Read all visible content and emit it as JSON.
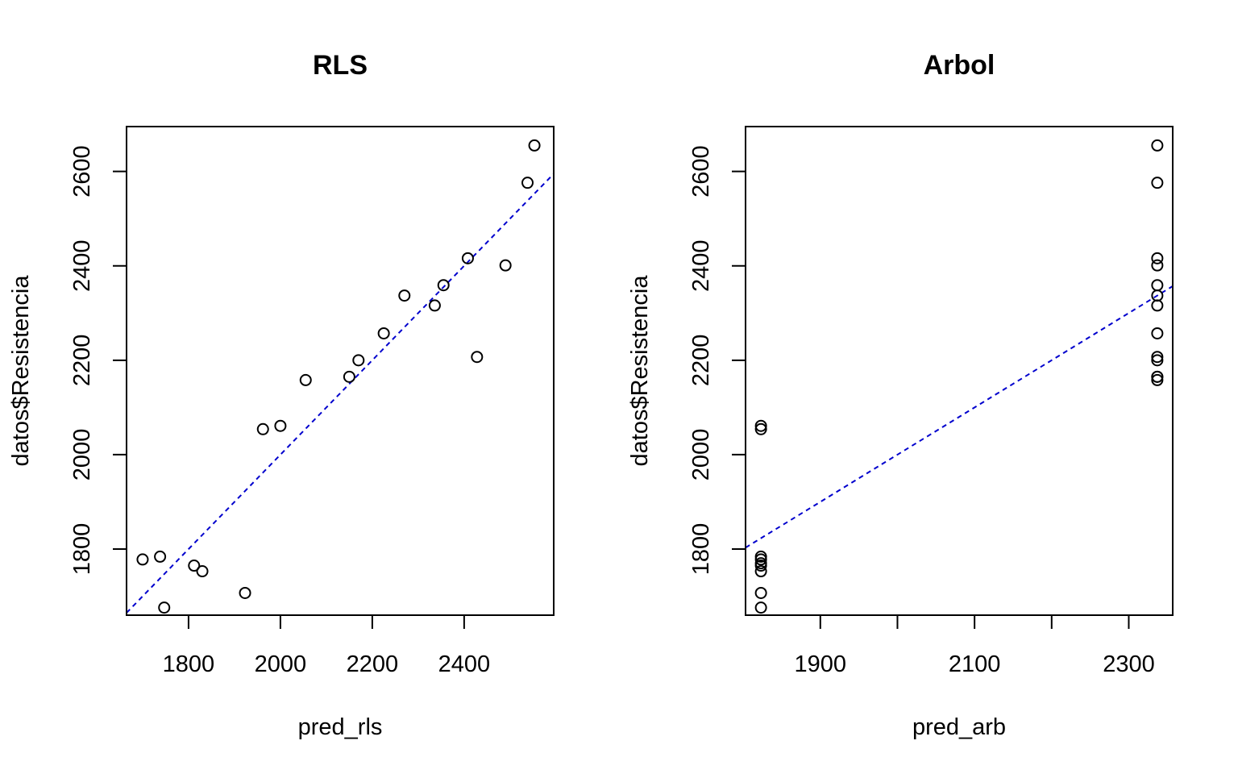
{
  "chart_data": [
    {
      "type": "scatter",
      "title": "RLS",
      "xlabel": "pred_rls",
      "ylabel": "datos$Resistencia",
      "xlim": [
        1665,
        2595
      ],
      "ylim": [
        1660,
        2695
      ],
      "x_ticks": [
        1800,
        2000,
        2200,
        2400
      ],
      "y_ticks": [
        1800,
        2000,
        2200,
        2400,
        2600
      ],
      "grid": false,
      "points": {
        "x": [
          1700,
          1738,
          1747,
          1812,
          1830,
          1923,
          1962,
          2000,
          2055,
          2150,
          2170,
          2225,
          2270,
          2336,
          2355,
          2408,
          2428,
          2490,
          2538,
          2553
        ],
        "y": [
          1778,
          1784,
          1676,
          1765,
          1753,
          1707,
          2054,
          2061,
          2158,
          2165,
          2200,
          2257,
          2337,
          2316,
          2359,
          2416,
          2207,
          2401,
          2576,
          2655
        ]
      },
      "reference_line": {
        "intercept": 0,
        "slope": 1,
        "color": "#0000cd",
        "style": "dashed"
      }
    },
    {
      "type": "scatter",
      "title": "Arbol",
      "xlabel": "pred_arb",
      "ylabel": "datos$Resistencia",
      "xlim": [
        1803,
        2357
      ],
      "ylim": [
        1660,
        2695
      ],
      "x_ticks": [
        1900,
        2000,
        2100,
        2200,
        2300
      ],
      "x_tick_labels": [
        "1900",
        "",
        "2100",
        "",
        "2300"
      ],
      "y_ticks": [
        1800,
        2000,
        2200,
        2400,
        2600
      ],
      "grid": false,
      "points": {
        "x": [
          1823,
          1823,
          1823,
          1823,
          1823,
          1823,
          1823,
          1823,
          1823,
          2337,
          2337,
          2337,
          2337,
          2337,
          2337,
          2337,
          2337,
          2337,
          2337,
          2337,
          2337,
          2337
        ],
        "y": [
          1676,
          1707,
          1753,
          1765,
          1778,
          1784,
          2054,
          2061,
          1770,
          2158,
          2165,
          2200,
          2207,
          2257,
          2316,
          2337,
          2359,
          2401,
          2416,
          2576,
          2655,
          2165
        ]
      },
      "reference_line": {
        "intercept": 0,
        "slope": 1,
        "color": "#0000cd",
        "style": "dashed"
      }
    }
  ]
}
